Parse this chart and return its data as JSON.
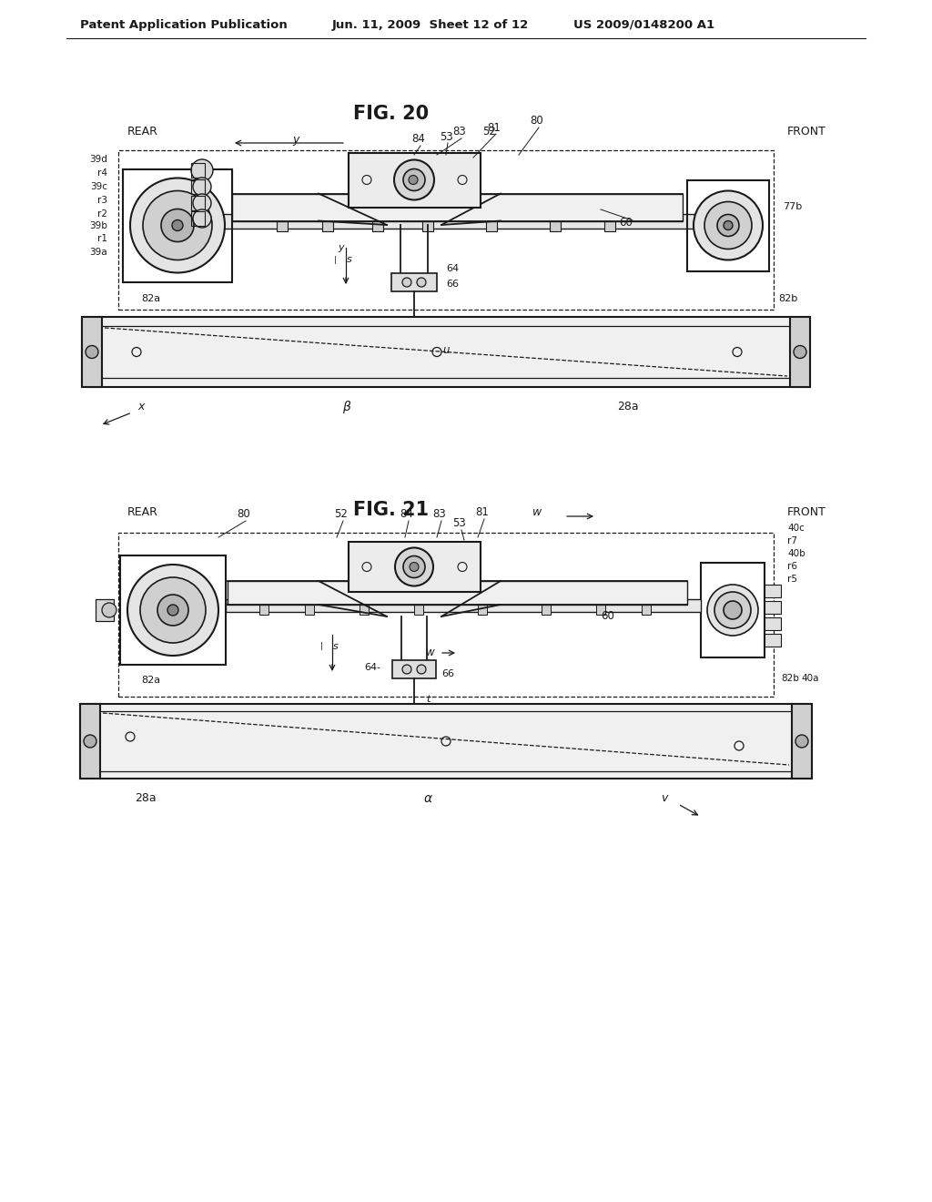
{
  "bg_color": "#ffffff",
  "header_text": "Patent Application Publication",
  "header_date": "Jun. 11, 2009  Sheet 12 of 12",
  "header_patent": "US 2009/0148200 A1",
  "fig20_title": "FIG. 20",
  "fig21_title": "FIG. 21",
  "line_color": "#1a1a1a",
  "text_color": "#1a1a1a",
  "gray_light": "#c8c8c8",
  "gray_med": "#a0a0a0",
  "gray_dark": "#707070"
}
